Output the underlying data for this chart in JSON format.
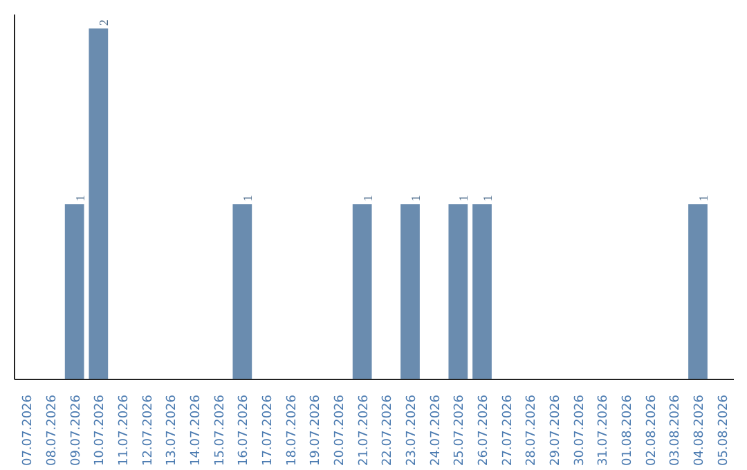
{
  "chart_data": {
    "type": "bar",
    "categories": [
      "07.07.2026",
      "08.07.2026",
      "09.07.2026",
      "10.07.2026",
      "11.07.2026",
      "12.07.2026",
      "13.07.2026",
      "14.07.2026",
      "15.07.2026",
      "16.07.2026",
      "17.07.2026",
      "18.07.2026",
      "19.07.2026",
      "20.07.2026",
      "21.07.2026",
      "22.07.2026",
      "23.07.2026",
      "24.07.2026",
      "25.07.2026",
      "26.07.2026",
      "27.07.2026",
      "28.07.2026",
      "29.07.2026",
      "30.07.2026",
      "31.07.2026",
      "01.08.2026",
      "02.08.2026",
      "03.08.2026",
      "04.08.2026",
      "05.08.2026"
    ],
    "values": [
      0,
      0,
      1,
      2,
      0,
      0,
      0,
      0,
      0,
      1,
      0,
      0,
      0,
      0,
      1,
      0,
      1,
      0,
      1,
      1,
      0,
      0,
      0,
      0,
      0,
      0,
      0,
      0,
      1,
      0
    ],
    "value_labels": [
      null,
      null,
      "1",
      "2",
      null,
      null,
      null,
      null,
      null,
      "1",
      null,
      null,
      null,
      null,
      "1",
      null,
      "1",
      null,
      "1",
      "1",
      null,
      null,
      null,
      null,
      null,
      null,
      null,
      null,
      "1",
      null
    ],
    "color": "#6a8caf",
    "ylim": [
      0,
      2.08
    ],
    "tick_labels": "x",
    "grid": false
  }
}
